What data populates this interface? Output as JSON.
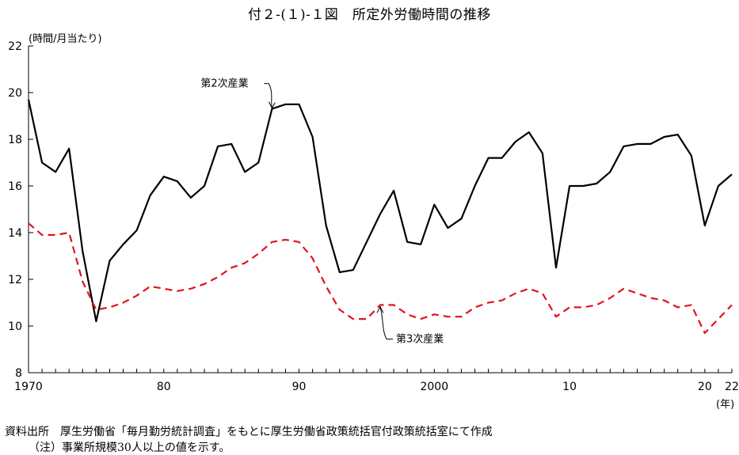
{
  "title": "付２-(１)-１図　所定外労働時間の推移",
  "unit_label": "(時間/月当たり)",
  "x_unit_label": "(年)",
  "source": "資料出所　厚生労働省「毎月勤労統計調査」をもとに厚生労働省政策統括官付政策統括室にて作成",
  "note": "（注）事業所規模30人以上の値を示す。",
  "chart_data": {
    "type": "line",
    "title": "付２-(１)-１図　所定外労働時間の推移",
    "ylabel": "(時間/月当たり)",
    "xlabel": "(年)",
    "ylim": [
      8,
      22
    ],
    "xlim": [
      1970,
      2022
    ],
    "y_ticks": [
      "8",
      "10",
      "12",
      "14",
      "16",
      "18",
      "20",
      "22"
    ],
    "x_ticks": [
      {
        "x": 1970,
        "label": "1970"
      },
      {
        "x": 1980,
        "label": "80"
      },
      {
        "x": 1990,
        "label": "90"
      },
      {
        "x": 2000,
        "label": "2000"
      },
      {
        "x": 2010,
        "label": "10"
      },
      {
        "x": 2020,
        "label": "20"
      },
      {
        "x": 2022,
        "label": "22"
      }
    ],
    "grid": false,
    "x": [
      1970,
      1971,
      1972,
      1973,
      1974,
      1975,
      1976,
      1977,
      1978,
      1979,
      1980,
      1981,
      1982,
      1983,
      1984,
      1985,
      1986,
      1987,
      1988,
      1989,
      1990,
      1991,
      1992,
      1993,
      1994,
      1995,
      1996,
      1997,
      1998,
      1999,
      2000,
      2001,
      2002,
      2003,
      2004,
      2005,
      2006,
      2007,
      2008,
      2009,
      2010,
      2011,
      2012,
      2013,
      2014,
      2015,
      2016,
      2017,
      2018,
      2019,
      2020,
      2021,
      2022
    ],
    "series": [
      {
        "name": "第2次産業",
        "color": "#000000",
        "dash": "solid",
        "values": [
          19.7,
          17.0,
          16.6,
          17.6,
          13.2,
          10.2,
          12.8,
          13.5,
          14.1,
          15.6,
          16.4,
          16.2,
          15.5,
          16.0,
          17.7,
          17.8,
          16.6,
          17.0,
          19.3,
          19.5,
          19.5,
          18.1,
          14.3,
          12.3,
          12.4,
          13.6,
          14.8,
          15.8,
          13.6,
          13.5,
          15.2,
          14.2,
          14.6,
          16.0,
          17.2,
          17.2,
          17.9,
          18.3,
          17.4,
          12.5,
          16.0,
          16.0,
          16.1,
          16.6,
          17.7,
          17.8,
          17.8,
          18.1,
          18.2,
          17.3,
          14.3,
          16.0,
          16.5
        ]
      },
      {
        "name": "第3次産業",
        "color": "#e0141e",
        "dash": "dashed",
        "values": [
          14.4,
          13.9,
          13.9,
          14.0,
          11.9,
          10.7,
          10.8,
          11.0,
          11.3,
          11.7,
          11.6,
          11.5,
          11.6,
          11.8,
          12.1,
          12.5,
          12.7,
          13.1,
          13.6,
          13.7,
          13.6,
          12.9,
          11.7,
          10.7,
          10.3,
          10.3,
          10.9,
          10.9,
          10.5,
          10.3,
          10.5,
          10.4,
          10.4,
          10.8,
          11.0,
          11.1,
          11.4,
          11.6,
          11.4,
          10.4,
          10.8,
          10.8,
          10.9,
          11.2,
          11.6,
          11.4,
          11.2,
          11.1,
          10.8,
          10.9,
          9.7,
          10.3,
          10.9
        ]
      }
    ],
    "annotations": [
      {
        "text": "第2次産業",
        "series": "第2次産業",
        "x": 1988
      },
      {
        "text": "第3次産業",
        "series": "第3次産業",
        "x": 1996
      }
    ]
  }
}
